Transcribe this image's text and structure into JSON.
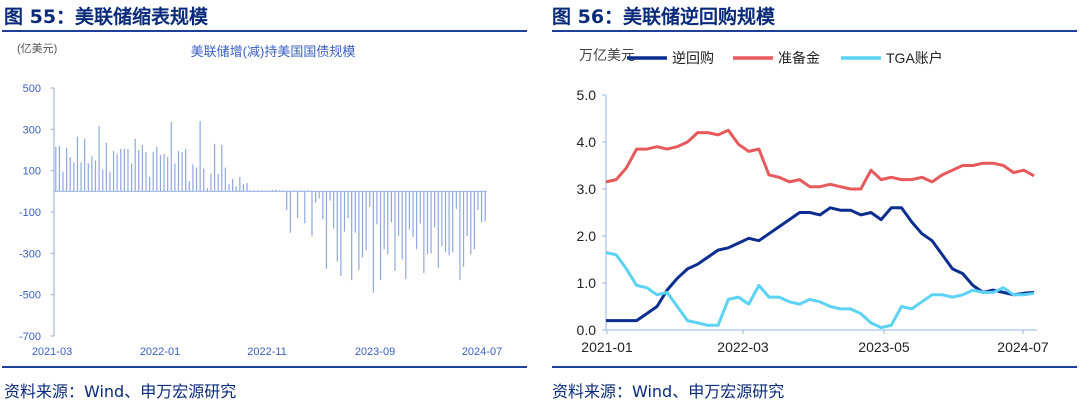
{
  "left": {
    "figure_title": "图 55：美联储缩表规模",
    "source": "资料来源：Wind、申万宏源研究"
  },
  "right": {
    "figure_title": "图 56：美联储逆回购规模",
    "source": "资料来源：Wind、申万宏源研究"
  },
  "chart_data": [
    {
      "type": "bar",
      "title": "美联储增(减)持美国国债规模",
      "ylabel": "(亿美元)",
      "ylim": [
        -700,
        500
      ],
      "yticks": [
        "500",
        "300",
        "100",
        "-100",
        "-300",
        "-500",
        "-700"
      ],
      "xticks": [
        "2021-03",
        "2022-01",
        "2022-11",
        "2023-09",
        "2024-07"
      ],
      "color": "#8fa8dc",
      "values": [
        215,
        220,
        95,
        210,
        165,
        140,
        265,
        140,
        255,
        135,
        170,
        150,
        315,
        105,
        235,
        95,
        195,
        180,
        205,
        205,
        205,
        135,
        255,
        200,
        225,
        190,
        70,
        190,
        215,
        175,
        180,
        165,
        335,
        135,
        195,
        190,
        205,
        50,
        130,
        115,
        340,
        110,
        15,
        85,
        230,
        85,
        225,
        115,
        35,
        60,
        25,
        70,
        35,
        40,
        5,
        5,
        5,
        5,
        5,
        5,
        8,
        8,
        5,
        5,
        -90,
        -200,
        5,
        -130,
        5,
        -155,
        5,
        -215,
        -55,
        -35,
        -135,
        -375,
        -45,
        -180,
        -340,
        -410,
        -195,
        -130,
        -430,
        -200,
        -380,
        -320,
        -285,
        -75,
        -490,
        -160,
        -430,
        -280,
        -305,
        -150,
        -385,
        -215,
        -330,
        -425,
        -185,
        -220,
        -280,
        -155,
        -395,
        -305,
        -300,
        -175,
        -370,
        -265,
        -295,
        -310,
        -295,
        -85,
        -430,
        -365,
        -215,
        -305,
        -280,
        -90,
        -150,
        -145
      ],
      "grid": false
    },
    {
      "type": "line",
      "ylabel": "万亿美元",
      "ylim": [
        0,
        5
      ],
      "yticks": [
        "5.0",
        "4.0",
        "3.0",
        "2.0",
        "1.0",
        "0.0"
      ],
      "xticks": [
        "2021-01",
        "2022-03",
        "2023-05",
        "2024-07"
      ],
      "x_range": [
        "2021-01",
        "2024-07"
      ],
      "legend": "top",
      "grid": false,
      "series": [
        {
          "name": "逆回购",
          "color": "#0b2d8f",
          "values": [
            0.2,
            0.2,
            0.2,
            0.2,
            0.35,
            0.5,
            0.85,
            1.1,
            1.3,
            1.4,
            1.55,
            1.7,
            1.75,
            1.85,
            1.95,
            1.9,
            2.05,
            2.2,
            2.35,
            2.5,
            2.5,
            2.45,
            2.6,
            2.55,
            2.55,
            2.45,
            2.5,
            2.35,
            2.6,
            2.6,
            2.3,
            2.05,
            1.9,
            1.6,
            1.3,
            1.2,
            0.95,
            0.8,
            0.85,
            0.8,
            0.75,
            0.78,
            0.8
          ]
        },
        {
          "name": "准备金",
          "color": "#e8595b",
          "values": [
            3.15,
            3.2,
            3.45,
            3.85,
            3.85,
            3.9,
            3.85,
            3.9,
            4.0,
            4.2,
            4.2,
            4.15,
            4.25,
            3.95,
            3.8,
            3.85,
            3.3,
            3.25,
            3.15,
            3.2,
            3.05,
            3.05,
            3.1,
            3.05,
            3.0,
            3.0,
            3.4,
            3.2,
            3.25,
            3.2,
            3.2,
            3.25,
            3.15,
            3.3,
            3.4,
            3.5,
            3.5,
            3.55,
            3.55,
            3.5,
            3.35,
            3.4,
            3.28
          ]
        },
        {
          "name": "TGA账户",
          "color": "#5cd2f5",
          "values": [
            1.65,
            1.6,
            1.3,
            0.95,
            0.9,
            0.75,
            0.8,
            0.5,
            0.2,
            0.15,
            0.1,
            0.1,
            0.65,
            0.7,
            0.55,
            0.95,
            0.7,
            0.7,
            0.6,
            0.55,
            0.65,
            0.6,
            0.5,
            0.45,
            0.45,
            0.35,
            0.15,
            0.05,
            0.1,
            0.5,
            0.45,
            0.6,
            0.75,
            0.75,
            0.7,
            0.75,
            0.85,
            0.8,
            0.8,
            0.9,
            0.75,
            0.75,
            0.78
          ]
        }
      ]
    }
  ]
}
